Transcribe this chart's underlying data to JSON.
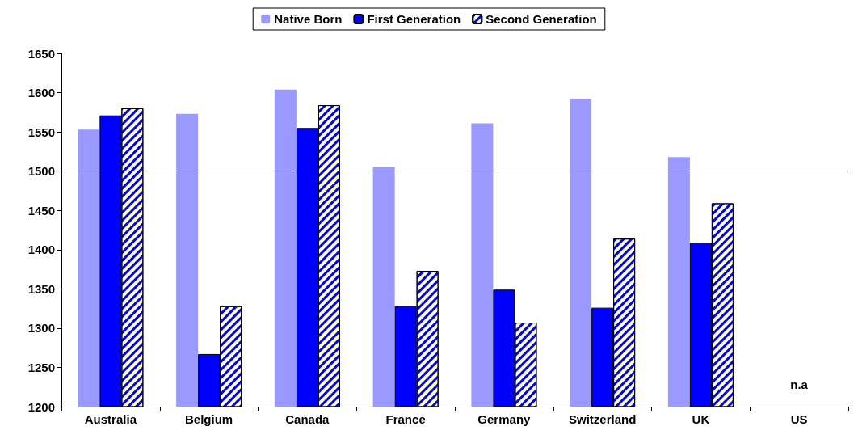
{
  "chart_data": {
    "type": "bar",
    "categories": [
      "Australia",
      "Belgium",
      "Canada",
      "France",
      "Germany",
      "Switzerland",
      "UK",
      "US"
    ],
    "series": [
      {
        "name": "Native Born",
        "color": "#9999ff",
        "values": [
          1553,
          1573,
          1604,
          1505,
          1561,
          1592,
          1518,
          null
        ]
      },
      {
        "name": "First Generation",
        "color": "#0000ff",
        "values": [
          1571,
          1267,
          1555,
          1328,
          1349,
          1326,
          1409,
          null
        ]
      },
      {
        "name": "Second Generation",
        "color": "#ffffcc",
        "values": [
          1580,
          1328,
          1584,
          1373,
          1307,
          1414,
          1459,
          null
        ]
      }
    ],
    "ylim": [
      1200,
      1650
    ],
    "yticks": [
      1200,
      1250,
      1300,
      1350,
      1400,
      1450,
      1500,
      1550,
      1600,
      1650
    ],
    "ref_lines": [
      {
        "axis": "y",
        "value": 1500,
        "color": "#000000"
      }
    ],
    "annotations": [
      "n.a"
    ],
    "grid": false,
    "legend": "top"
  }
}
